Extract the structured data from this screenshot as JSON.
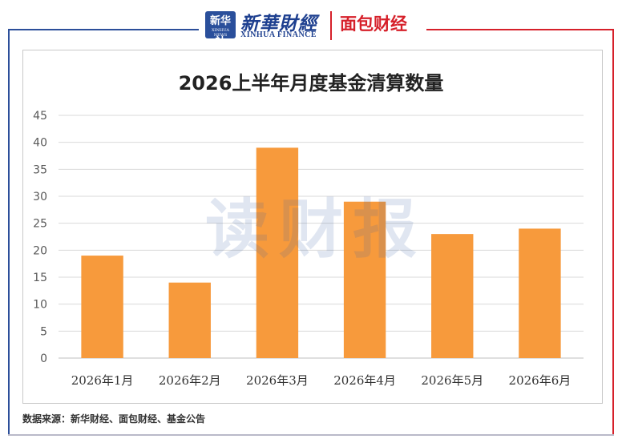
{
  "header": {
    "xinhua_logo_text": "新华社",
    "xinhua_logo_sub": "XINHUA NEWS",
    "xinhua_name": "新華財經",
    "xinhua_sub": "XINHUA FINANCE",
    "mianbao_name": "面包财经"
  },
  "watermark": "读财报",
  "footer": {
    "source": "数据来源：新华财经、面包财经、基金公告"
  },
  "colors": {
    "bar": "#f79a3c",
    "grid": "#d9d9d9",
    "axis_text": "#595959",
    "brand_blue": "#2c4f9a",
    "brand_red": "#d6202a"
  },
  "chart_data": {
    "type": "bar",
    "title": "2026上半年月度基金清算数量",
    "categories": [
      "2026年1月",
      "2026年2月",
      "2026年3月",
      "2026年4月",
      "2026年5月",
      "2026年6月"
    ],
    "values": [
      19,
      14,
      39,
      29,
      23,
      24
    ],
    "ylim": [
      0,
      45
    ],
    "yticks": [
      0,
      5,
      10,
      15,
      20,
      25,
      30,
      35,
      40,
      45
    ],
    "xlabel": "",
    "ylabel": "",
    "grid": true,
    "legend": "none"
  }
}
